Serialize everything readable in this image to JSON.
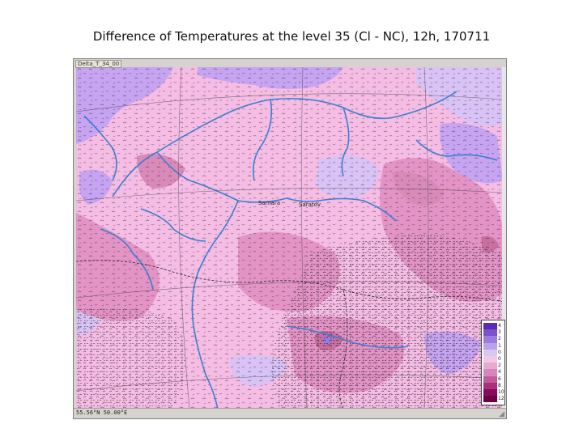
{
  "title": "Difference of Temperatures at the level 35 (Cl - NC), 12h, 170711",
  "map": {
    "layer_label": "Delta_T_34_00",
    "place_labels": [
      "Samara",
      "Saratov"
    ],
    "status_text": "55.56°N 50.00°E"
  },
  "colors": {
    "background_pink": "#f5bce4",
    "mid_pink": "#e493c6",
    "dark_pink": "#c86f9f",
    "lavender": "#c7a4f2",
    "pale_violet": "#d9c2f5",
    "river_blue": "#3a7fd0",
    "contour": "#1a1a1a"
  },
  "legend": [
    {
      "value": "4",
      "color": "#5b2bb5"
    },
    {
      "value": "3",
      "color": "#7b52cc"
    },
    {
      "value": "2",
      "color": "#9c7bdc"
    },
    {
      "value": "1",
      "color": "#baa3ea"
    },
    {
      "value": "0",
      "color": "#d7c8f2"
    },
    {
      "value": "0",
      "color": "#f3c8e6"
    },
    {
      "value": "2",
      "color": "#e6a9cf"
    },
    {
      "value": "4",
      "color": "#d885b9"
    },
    {
      "value": "6",
      "color": "#c45a9b"
    },
    {
      "value": "8",
      "color": "#a8307c"
    },
    {
      "value": "10",
      "color": "#8a0a5e"
    },
    {
      "value": "12",
      "color": "#6b0046"
    }
  ]
}
